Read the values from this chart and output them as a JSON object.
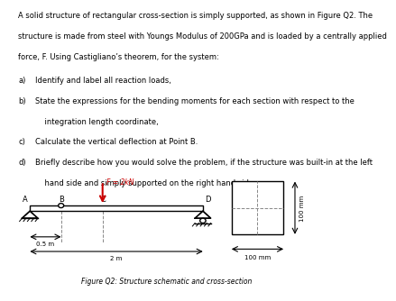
{
  "fig_caption": "Figure Q2: Structure schematic and cross-section",
  "force_label": "F = 2kN",
  "dim_05": "0.5 m",
  "dim_2": "2 m",
  "dim_100mm_h": "100 mm",
  "dim_100mm_v": "100 mm",
  "beam_color": "#000000",
  "force_color": "#cc0000",
  "bg_color": "#ffffff",
  "text_color": "#000000",
  "font_size_body": 6.0,
  "font_size_label": 5.5,
  "font_size_caption": 5.5,
  "font_size_dim": 5.0,
  "text_lines": [
    "A solid structure of rectangular cross-section is simply supported, as shown in Figure Q2. The",
    "structure is made from steel with Youngs Modulus of 200GPa and is loaded by a centrally applied",
    "force, F. Using Castigliano’s theorem, for the system:"
  ],
  "list_items": [
    [
      "a)",
      "Identify and label all reaction loads,"
    ],
    [
      "b)",
      "State the expressions for the bending moments for each section with respect to the"
    ],
    [
      "",
      "    integration length coordinate,"
    ],
    [
      "c)",
      "Calculate the vertical deflection at Point B."
    ],
    [
      "d)",
      "Briefly describe how you would solve the problem, if the structure was built-in at the left"
    ],
    [
      "",
      "    hand side and simply supported on the right hand side."
    ]
  ]
}
